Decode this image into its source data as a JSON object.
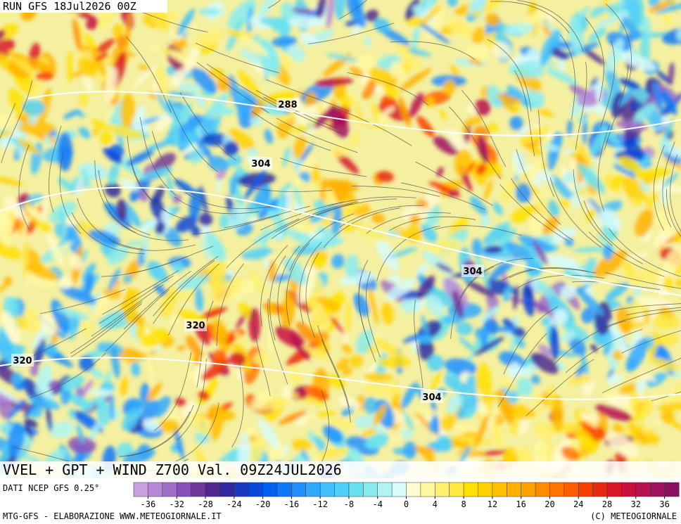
{
  "header": {
    "run": "RUN GFS 18Jul2026 00Z"
  },
  "contour_labels": [
    "288",
    "304",
    "304",
    "320",
    "320",
    "304"
  ],
  "title": "VVEL + GPT + WIND Z700 Val. 09Z24JUL2026",
  "source": "DATI NCEP GFS 0.25°",
  "footer": {
    "left": "MTG-GFS - ELABORAZIONE WWW.METEOGIORNALE.IT",
    "right": "(C) METEOGIORNALE"
  },
  "colorbar": {
    "range": [
      -38,
      38
    ],
    "ticks": [
      -36,
      -32,
      -28,
      -24,
      -20,
      -16,
      -12,
      -8,
      -4,
      0,
      4,
      8,
      12,
      16,
      20,
      24,
      28,
      32,
      36
    ],
    "colors": [
      "#c8a0e0",
      "#b888d8",
      "#a070c8",
      "#8850b8",
      "#703898",
      "#502890",
      "#3028a0",
      "#1838c0",
      "#0848d8",
      "#0060f0",
      "#1078f8",
      "#2090ff",
      "#30a8ff",
      "#40c0ff",
      "#50d0f8",
      "#68e0f0",
      "#88ecf0",
      "#b0f4f4",
      "#d8fcfc",
      "#fffcd0",
      "#fff8a0",
      "#fff070",
      "#ffe840",
      "#ffe000",
      "#ffd000",
      "#ffc000",
      "#ffb000",
      "#ffa000",
      "#ff8c00",
      "#ff7400",
      "#ff5c00",
      "#f84000",
      "#e82810",
      "#d81828",
      "#c81040",
      "#b81050",
      "#a01060",
      "#881060"
    ]
  }
}
